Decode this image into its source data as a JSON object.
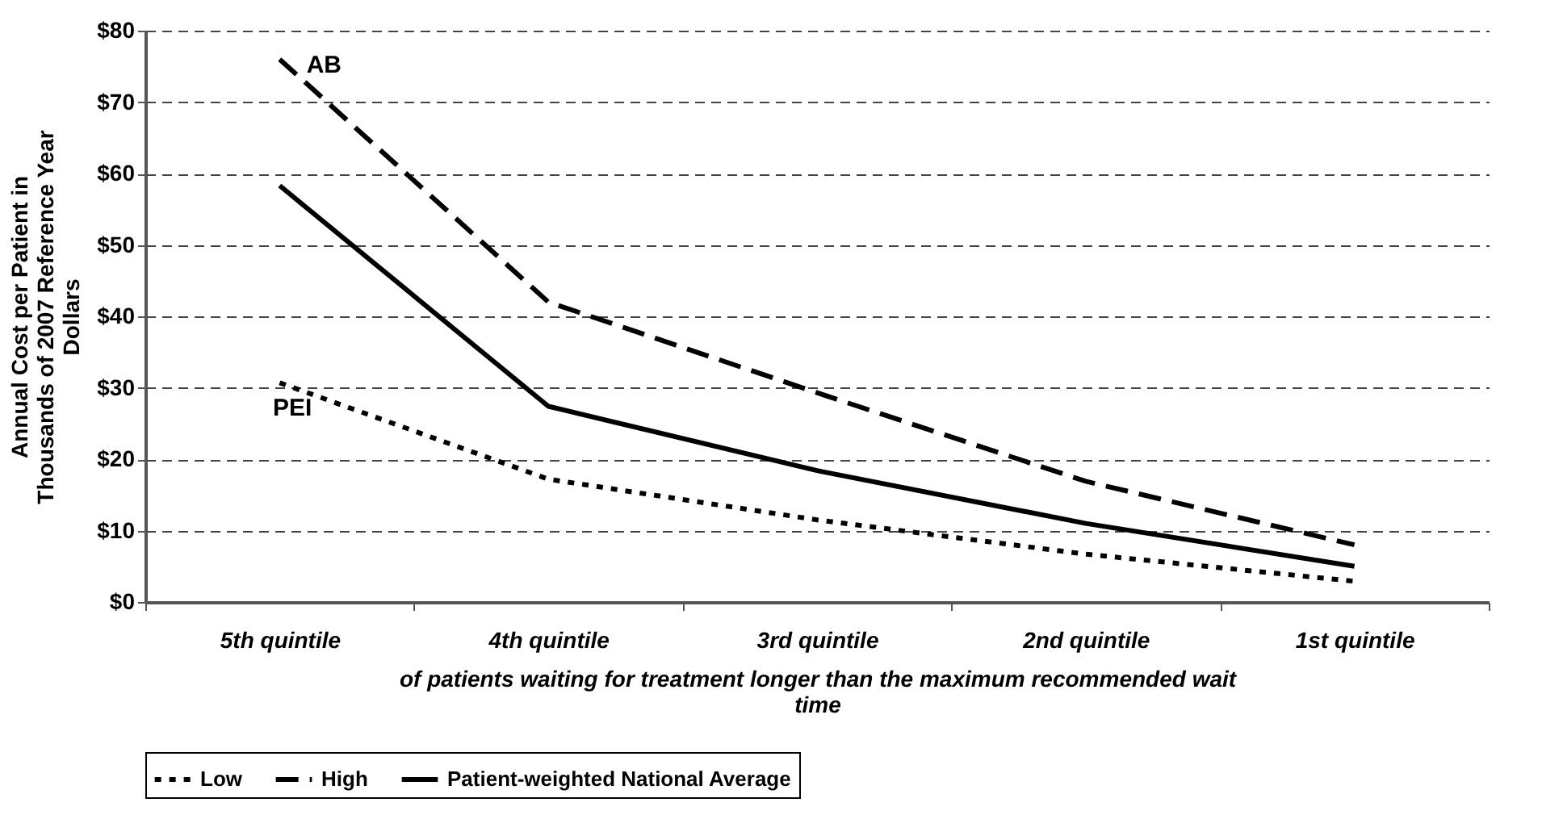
{
  "chart_data": {
    "type": "line",
    "xlabel": "of patients waiting for treatment longer than the maximum recommended wait time",
    "ylabel": "Annual Cost per Patient in Thousands of 2007 Reference Year Dollars",
    "categories": [
      "5th quintile",
      "4th quintile",
      "3rd quintile",
      "2nd quintile",
      "1st quintile"
    ],
    "series": [
      {
        "name": "Low",
        "color": "#000000",
        "line_style": "dotted",
        "values": [
          30.7,
          17.2,
          11.5,
          6.7,
          2.9
        ]
      },
      {
        "name": "High",
        "color": "#000000",
        "line_style": "dashed",
        "values": [
          76,
          42,
          29.3,
          16.9,
          8
        ]
      },
      {
        "name": "Patient-weighted National Average",
        "color": "#000000",
        "line_style": "solid",
        "values": [
          58.3,
          27.4,
          18.4,
          11,
          5
        ]
      }
    ],
    "ylim": [
      0,
      80
    ],
    "yticks": [
      {
        "value": 0,
        "label": "$0"
      },
      {
        "value": 10,
        "label": "$10"
      },
      {
        "value": 20,
        "label": "$20"
      },
      {
        "value": 30,
        "label": "$30"
      },
      {
        "value": 40,
        "label": "$40"
      },
      {
        "value": 50,
        "label": "$50"
      },
      {
        "value": 60,
        "label": "$60"
      },
      {
        "value": 70,
        "label": "$70"
      },
      {
        "value": 80,
        "label": "$80"
      }
    ],
    "grid": "y",
    "legend": "bottom",
    "annotations": [
      "AB",
      "PEI"
    ]
  }
}
